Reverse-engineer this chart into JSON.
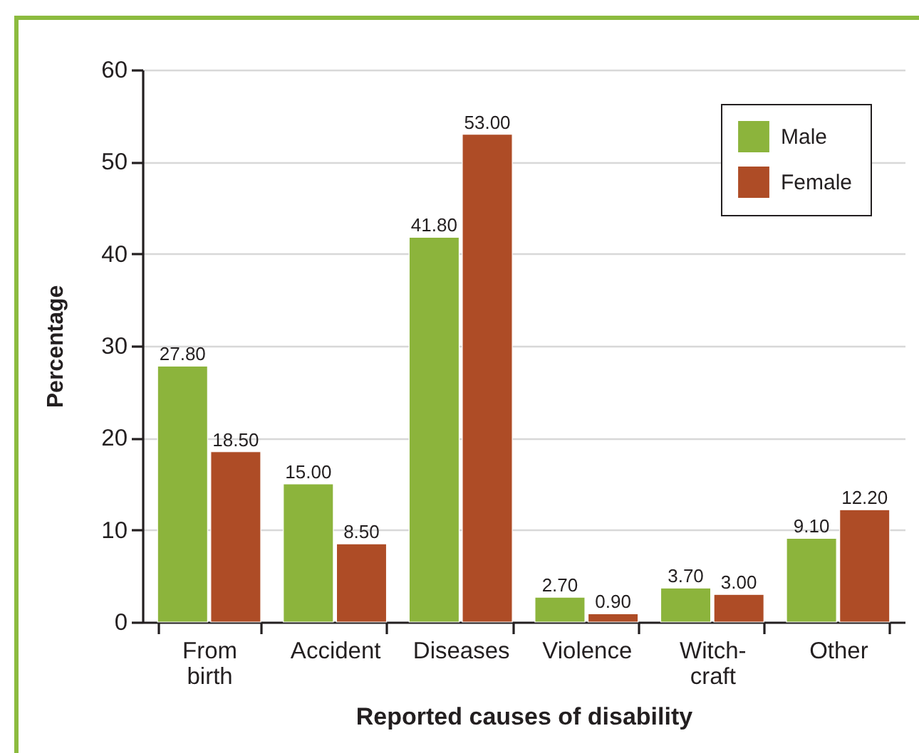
{
  "chart_data": {
    "type": "bar",
    "xlabel": "Reported causes of disability",
    "ylabel": "Percentage",
    "categories": [
      "From birth",
      "Accident",
      "Diseases",
      "Violence",
      "Witch-craft",
      "Other"
    ],
    "series": [
      {
        "name": "Male",
        "color": "#8cb43c",
        "values": [
          27.8,
          15,
          41.8,
          2.7,
          3.7,
          9.1
        ],
        "value_labels": [
          "27.80",
          "15.00",
          "41.80",
          "2.70",
          "3.70",
          "9.10"
        ]
      },
      {
        "name": "Female",
        "color": "#ae4c26",
        "values": [
          18.5,
          8.5,
          53,
          0.9,
          3,
          12.2
        ],
        "value_labels": [
          "18.50",
          "8.50",
          "53.00",
          "0.90",
          "3.00",
          "12.20"
        ]
      }
    ],
    "ylim": [
      0,
      60
    ],
    "yticks": [
      0,
      10,
      20,
      30,
      40,
      50,
      60
    ],
    "grid": "y",
    "legend": "top right"
  }
}
